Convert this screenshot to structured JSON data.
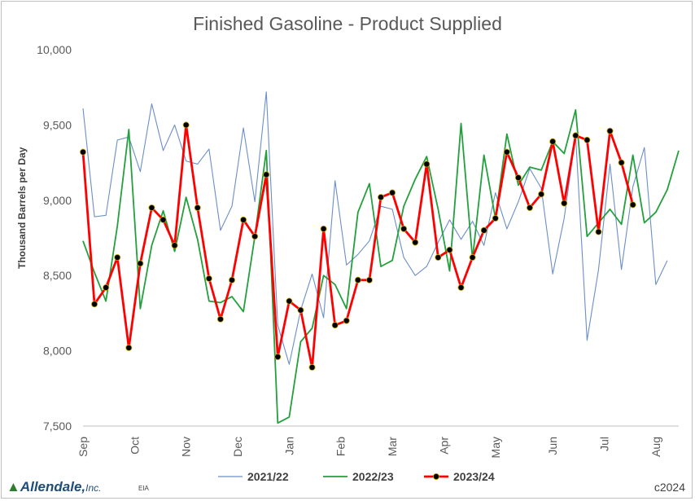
{
  "chart_data": {
    "type": "line",
    "title": "Finished Gasoline - Product Supplied",
    "ylabel": "Thousand Barrels per Day",
    "xlabel": "",
    "ylim": [
      7500,
      10000
    ],
    "yticks": [
      7500,
      8000,
      8500,
      9000,
      9500,
      10000
    ],
    "ytick_labels": [
      "7,500",
      "8,000",
      "8,500",
      "9,000",
      "9,500",
      "10,000"
    ],
    "x_range": [
      0,
      52
    ],
    "month_ticks": [
      {
        "label": "Sep",
        "week": 0
      },
      {
        "label": "Oct",
        "week": 4.5
      },
      {
        "label": "Nov",
        "week": 9
      },
      {
        "label": "Dec",
        "week": 13.5
      },
      {
        "label": "Jan",
        "week": 18
      },
      {
        "label": "Feb",
        "week": 22.5
      },
      {
        "label": "Mar",
        "week": 27
      },
      {
        "label": "Apr",
        "week": 31.5
      },
      {
        "label": "May",
        "week": 36
      },
      {
        "label": "Jun",
        "week": 41
      },
      {
        "label": "Jul",
        "week": 45.5
      },
      {
        "label": "Aug",
        "week": 50
      }
    ],
    "legend_position": "bottom",
    "grid": false,
    "series": [
      {
        "name": "2021/22",
        "color": "#6a8ec8",
        "values": [
          9610,
          8890,
          8900,
          9400,
          9420,
          9190,
          9640,
          9330,
          9500,
          9260,
          9240,
          9340,
          8800,
          8960,
          9480,
          8990,
          9720,
          8170,
          7910,
          8270,
          8510,
          8220,
          9130,
          8570,
          8640,
          8730,
          8960,
          8940,
          8620,
          8500,
          8560,
          8720,
          8870,
          8740,
          8860,
          8700,
          9050,
          8810,
          8990,
          9210,
          9080,
          8510,
          8880,
          9430,
          8070,
          8540,
          9240,
          8540,
          9090,
          9350,
          8440,
          8600
        ]
      },
      {
        "name": "2022/23",
        "color": "#22a03c",
        "values": [
          8730,
          8520,
          8330,
          8830,
          9470,
          8280,
          8700,
          8930,
          8660,
          9020,
          8740,
          8330,
          8320,
          8360,
          8260,
          8760,
          9330,
          7520,
          7560,
          8060,
          8150,
          8500,
          8440,
          8280,
          8920,
          9110,
          8560,
          8600,
          8960,
          9140,
          9290,
          8940,
          8530,
          9510,
          8610,
          9300,
          8880,
          9440,
          9100,
          9220,
          9200,
          9390,
          9310,
          9600,
          8760,
          8850,
          8940,
          8840,
          9300,
          8850,
          8920,
          9070,
          9330
        ]
      },
      {
        "name": "2023/24",
        "color": "#ff0000",
        "values": [
          9320,
          8310,
          8420,
          8620,
          8020,
          8580,
          8950,
          8870,
          8700,
          9500,
          8950,
          8480,
          8210,
          8470,
          8870,
          8760,
          9170,
          7960,
          8330,
          8270,
          7890,
          8810,
          8170,
          8200,
          8470,
          8470,
          9020,
          9050,
          8810,
          8720,
          9240,
          8620,
          8670,
          8420,
          8620,
          8800,
          8880,
          9320,
          9150,
          8950,
          9040,
          9390,
          8980,
          9430,
          9400,
          8790,
          9460,
          9250,
          8970
        ]
      }
    ]
  },
  "footer": {
    "logo_text": "Allendale,",
    "logo_suffix": "Inc.",
    "source": "EIA",
    "copyright": "c2024"
  }
}
